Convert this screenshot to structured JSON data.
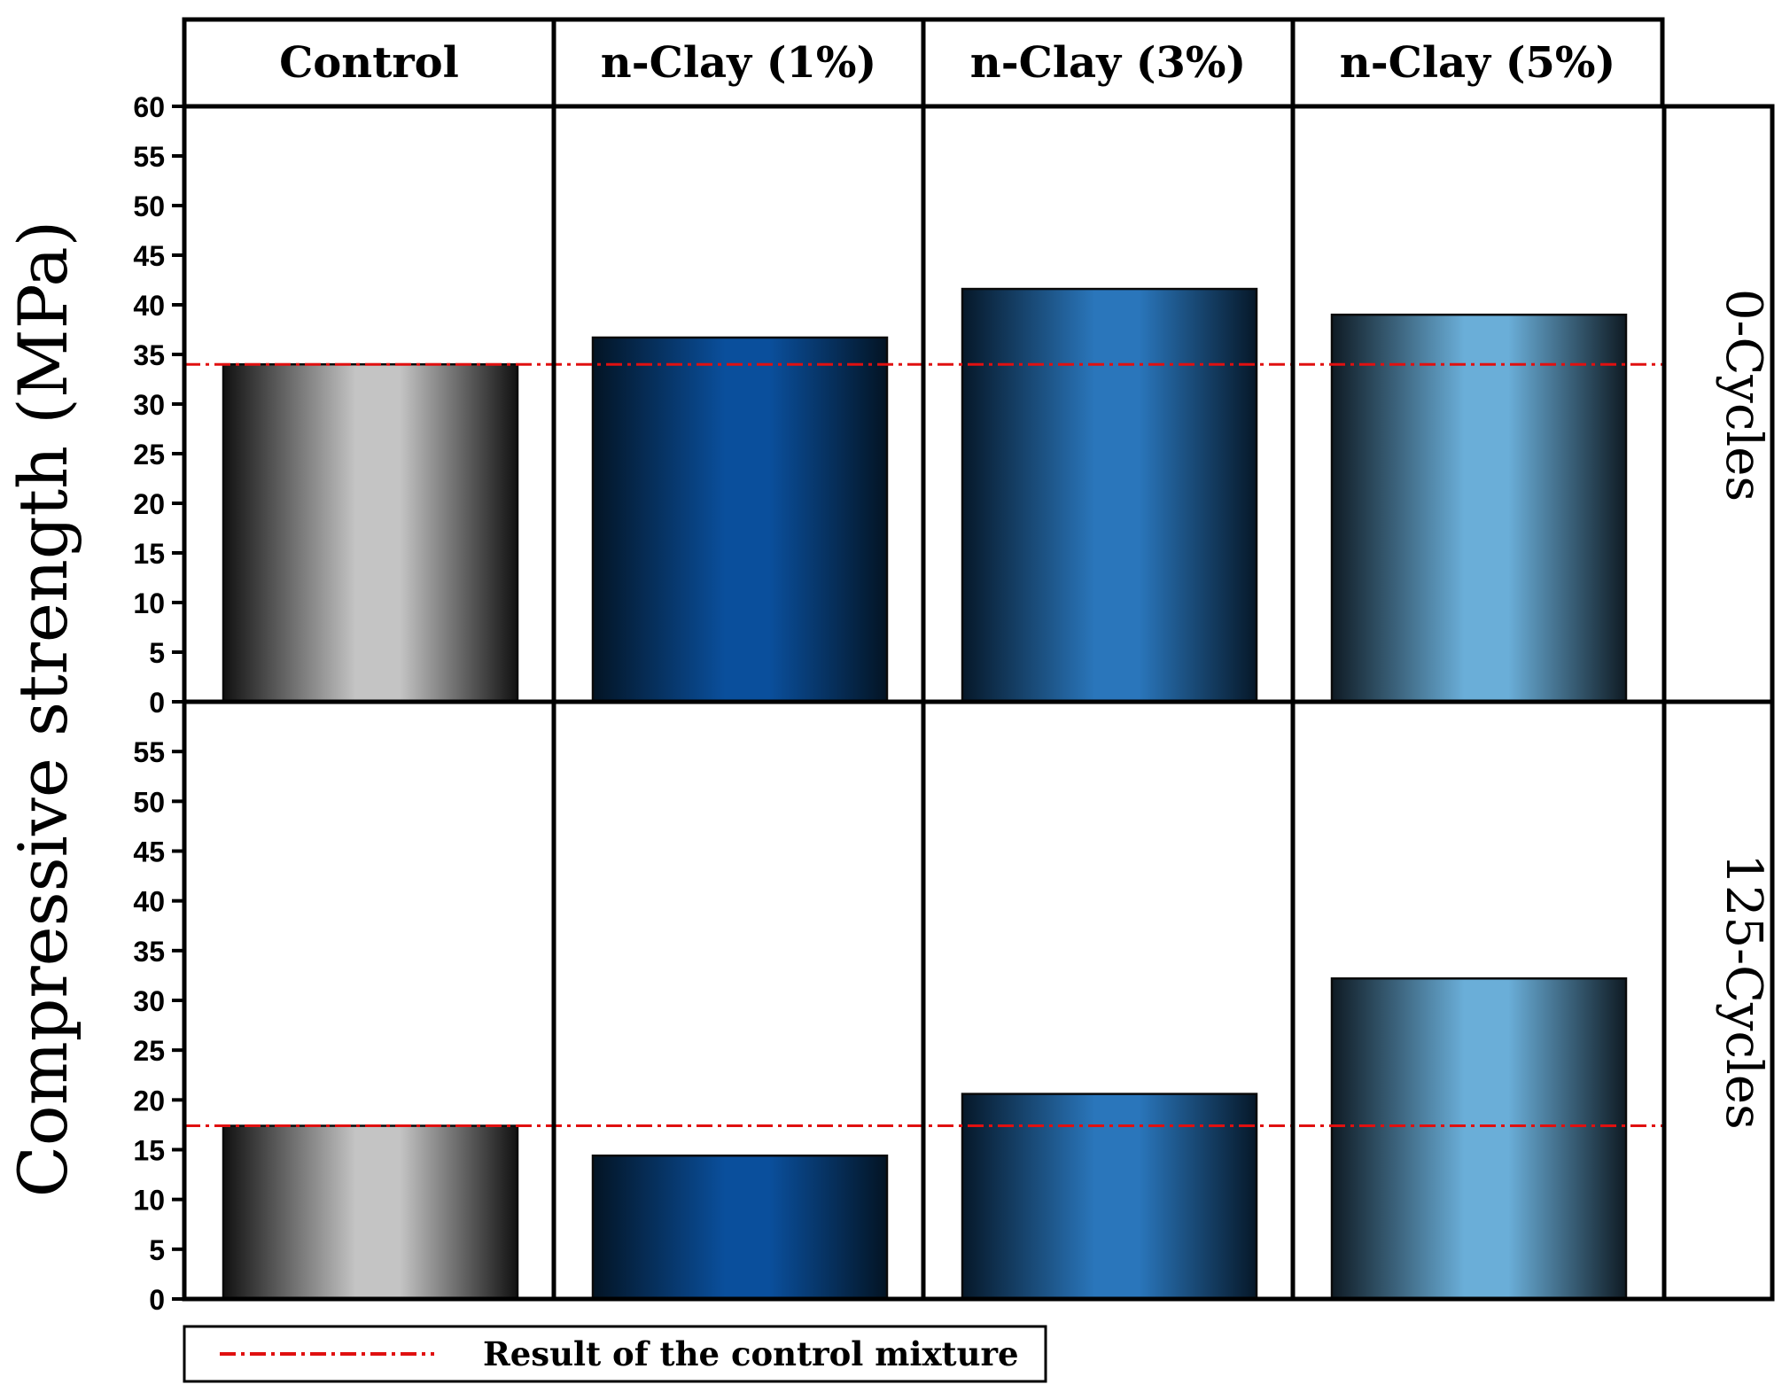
{
  "chart_data": {
    "type": "bar",
    "ylabel": "Compressive strength (MPa)",
    "categories": [
      "Control",
      "n-Clay (1%)",
      "n-Clay (3%)",
      "n-Clay (5%)"
    ],
    "ylim": [
      0,
      60
    ],
    "yticks": [
      0,
      5,
      10,
      15,
      20,
      25,
      30,
      35,
      40,
      45,
      50,
      55,
      60
    ],
    "panels": [
      {
        "label": "0-Cycles",
        "values": [
          34,
          36.7,
          41.6,
          39
        ],
        "reference_line": 34
      },
      {
        "label": "125-Cycles",
        "values": [
          17.4,
          14.4,
          20.6,
          32.2
        ],
        "reference_line": 17.4
      }
    ],
    "bar_styles": [
      {
        "edge": "#111111",
        "center": "#c4c4c4"
      },
      {
        "edge": "#031424",
        "center": "#0a4f9c"
      },
      {
        "edge": "#061829",
        "center": "#2a76bb"
      },
      {
        "edge": "#0f1b24",
        "center": "#6aaed8"
      }
    ],
    "reference_color": "#e01010",
    "legend": {
      "label": "Result of the control mixture",
      "position": "bottom-left"
    }
  }
}
